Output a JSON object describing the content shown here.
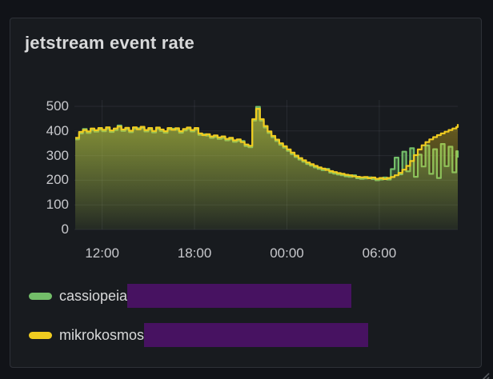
{
  "panel": {
    "title": "jetstream event rate"
  },
  "legend": [
    {
      "label": "cassiopeia",
      "color": "#73be69",
      "redaction_color": "#471261"
    },
    {
      "label": "mikrokosmos",
      "color": "#f0cc20",
      "redaction_color": "#471261"
    }
  ],
  "colors": {
    "page_background": "#111318",
    "panel_background": "#181b1f",
    "panel_border": "#2e3138",
    "title_text": "#d8d9da",
    "tick_text": "#c7c8cc",
    "grid_line": "rgba(204,204,220,0.09)",
    "series_green": "#73be69",
    "series_yellow": "#f0cc20",
    "redaction_purple": "#471261"
  },
  "chart_data": {
    "type": "area",
    "title": "jetstream event rate",
    "line_interpolation": "step-after",
    "grid": true,
    "legend_position": "bottom",
    "ylim": [
      0,
      500
    ],
    "y_ticks": [
      0,
      100,
      200,
      300,
      400,
      500
    ],
    "x_range_hours": [
      10.2,
      35.1
    ],
    "x_ticks": [
      {
        "hour": 12,
        "label": "12:00"
      },
      {
        "hour": 18,
        "label": "18:00"
      },
      {
        "hour": 24,
        "label": "00:00"
      },
      {
        "hour": 30,
        "label": "06:00"
      }
    ],
    "x_hours": [
      10.25,
      10.5,
      10.75,
      11,
      11.25,
      11.5,
      11.75,
      12,
      12.25,
      12.5,
      12.75,
      13,
      13.25,
      13.5,
      13.75,
      14,
      14.25,
      14.5,
      14.75,
      15,
      15.25,
      15.5,
      15.75,
      16,
      16.25,
      16.5,
      16.75,
      17,
      17.25,
      17.5,
      17.75,
      18,
      18.25,
      18.5,
      18.75,
      19,
      19.25,
      19.5,
      19.75,
      20,
      20.25,
      20.5,
      20.75,
      21,
      21.25,
      21.5,
      21.75,
      22,
      22.25,
      22.5,
      22.75,
      23,
      23.25,
      23.5,
      23.75,
      24,
      24.25,
      24.5,
      24.75,
      25,
      25.25,
      25.5,
      25.75,
      26,
      26.25,
      26.5,
      26.75,
      27,
      27.25,
      27.5,
      27.75,
      28,
      28.25,
      28.5,
      28.75,
      29,
      29.25,
      29.5,
      29.75,
      30,
      30.25,
      30.5,
      30.75,
      31,
      31.25,
      31.5,
      31.75,
      32,
      32.25,
      32.5,
      32.75,
      33,
      33.25,
      33.5,
      33.75,
      34,
      34.25,
      34.5,
      34.75,
      35,
      35.1
    ],
    "series": [
      {
        "name": "cassiopeia",
        "color": "#73be69",
        "values": [
          366,
          390,
          408,
          392,
          404,
          397,
          406,
          399,
          409,
          396,
          404,
          422,
          400,
          407,
          395,
          409,
          411,
          411,
          398,
          406,
          394,
          408,
          400,
          393,
          406,
          409,
          405,
          393,
          402,
          408,
          398,
          406,
          384,
          387,
          381,
          372,
          376,
          368,
          372,
          362,
          366,
          356,
          360,
          359,
          339,
          334,
          442,
          498,
          442,
          414,
          392,
          374,
          359,
          344,
          332,
          319,
          306,
          294,
          284,
          275,
          266,
          259,
          252,
          246,
          241,
          246,
          231,
          227,
          223,
          220,
          216,
          214,
          220,
          208,
          206,
          207,
          212,
          205,
          200,
          203,
          211,
          203,
          245,
          292,
          224,
          316,
          236,
          330,
          214,
          304,
          256,
          341,
          226,
          326,
          209,
          347,
          257,
          336,
          232,
          318,
          292
        ]
      },
      {
        "name": "mikrokosmos",
        "color": "#f0cc20",
        "values": [
          372,
          396,
          404,
          398,
          410,
          403,
          412,
          405,
          415,
          402,
          410,
          418,
          406,
          413,
          401,
          415,
          407,
          417,
          404,
          412,
          400,
          414,
          406,
          399,
          412,
          405,
          411,
          399,
          408,
          414,
          404,
          412,
          390,
          383,
          387,
          378,
          382,
          374,
          378,
          368,
          372,
          362,
          366,
          355,
          345,
          340,
          448,
          490,
          448,
          420,
          398,
          380,
          365,
          350,
          338,
          325,
          312,
          300,
          290,
          281,
          272,
          265,
          258,
          252,
          247,
          242,
          237,
          233,
          229,
          226,
          222,
          220,
          216,
          214,
          212,
          213,
          208,
          211,
          206,
          209,
          205,
          209,
          213,
          220,
          230,
          243,
          258,
          278,
          302,
          325,
          342,
          355,
          366,
          375,
          383,
          390,
          397,
          404,
          410,
          416,
          428
        ]
      }
    ]
  }
}
